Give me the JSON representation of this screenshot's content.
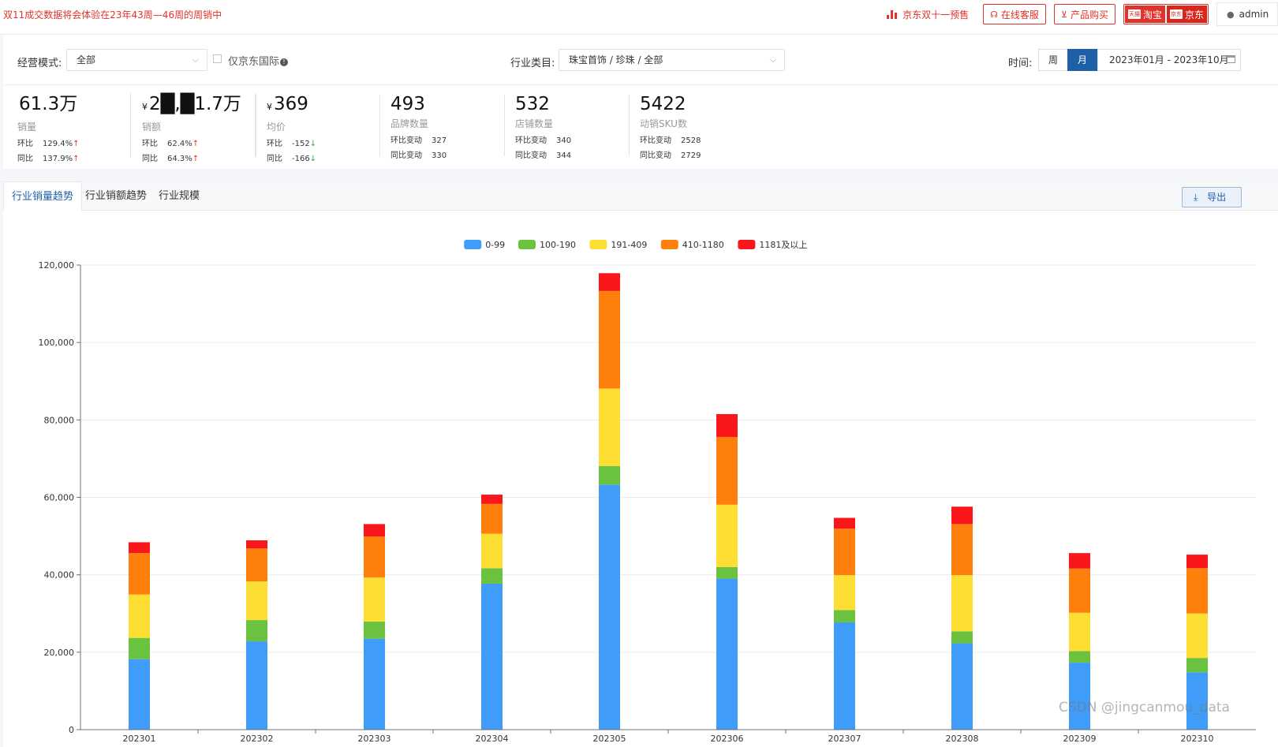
{
  "topbar": {
    "notice": "双11成交数据将会体验在23年43周—46周的周销中",
    "jd_presale": "京东双十一预售",
    "online_service": "在线客服",
    "product_purchase": "产品购买",
    "platform_taobao": "淘宝",
    "platform_taobao_badge": "天猫",
    "platform_jd": "京东",
    "platform_jd_badge": "京东",
    "user": "admin"
  },
  "filters": {
    "mode_label": "经营模式:",
    "mode_value": "全部",
    "jd_intl_label": "仅京东国际",
    "category_label": "行业类目:",
    "category_value": "珠宝首饰 / 珍珠 / 全部",
    "time_label": "时间:",
    "week": "周",
    "month": "月",
    "date_range": "2023年01月 - 2023年10月"
  },
  "metrics": [
    {
      "value": "61.3万",
      "currency": "",
      "title": "销量",
      "row1_label": "环比",
      "row1_value": "129.4%",
      "row1_arrow": "↑",
      "row2_label": "同比",
      "row2_value": "137.9%",
      "row2_arrow": "↑"
    },
    {
      "value": "2█,█1.7万",
      "currency": "¥",
      "title": "销额",
      "row1_label": "环比",
      "row1_value": "62.4%",
      "row1_arrow": "↑",
      "row2_label": "同比",
      "row2_value": "64.3%",
      "row2_arrow": "↑"
    },
    {
      "value": "369",
      "currency": "¥",
      "title": "均价",
      "row1_label": "环比",
      "row1_value": "-152",
      "row1_arrow": "↓",
      "row2_label": "同比",
      "row2_value": "-166",
      "row2_arrow": "↓"
    },
    {
      "value": "493",
      "currency": "",
      "title": "品牌数量",
      "row1_label": "环比变动",
      "row1_value": "327",
      "row1_arrow": "",
      "row2_label": "同比变动",
      "row2_value": "330",
      "row2_arrow": ""
    },
    {
      "value": "532",
      "currency": "",
      "title": "店铺数量",
      "row1_label": "环比变动",
      "row1_value": "340",
      "row1_arrow": "",
      "row2_label": "同比变动",
      "row2_value": "344",
      "row2_arrow": ""
    },
    {
      "value": "5422",
      "currency": "",
      "title": "动销SKU数",
      "row1_label": "环比变动",
      "row1_value": "2528",
      "row1_arrow": "",
      "row2_label": "同比变动",
      "row2_value": "2729",
      "row2_arrow": ""
    }
  ],
  "tabs": [
    "行业销量趋势",
    "行业销额趋势",
    "行业规模"
  ],
  "export_label": "导出",
  "watermark": "CSDN @jingcanmou_data",
  "chart_data": {
    "type": "bar",
    "stacked": true,
    "categories": [
      "202301",
      "202302",
      "202303",
      "202304",
      "202305",
      "202306",
      "202307",
      "202308",
      "202309",
      "202310"
    ],
    "series": [
      {
        "name": "0-99",
        "color": "#3f9df9",
        "values": [
          18200,
          22800,
          23500,
          37700,
          63300,
          39000,
          27700,
          22300,
          17300,
          14800
        ]
      },
      {
        "name": "100-190",
        "color": "#6bc23e",
        "values": [
          5500,
          5500,
          4400,
          4000,
          4800,
          3000,
          3200,
          3100,
          3000,
          3700
        ]
      },
      {
        "name": "191-409",
        "color": "#fddf33",
        "values": [
          11200,
          10000,
          11400,
          8900,
          20000,
          16100,
          9000,
          14500,
          9900,
          11500
        ]
      },
      {
        "name": "410-1180",
        "color": "#fe7f0c",
        "values": [
          10700,
          8500,
          10600,
          7700,
          25200,
          17500,
          12000,
          13200,
          11400,
          11700
        ]
      },
      {
        "name": "1181及以上",
        "color": "#f9171b",
        "values": [
          2800,
          2100,
          3200,
          2400,
          4600,
          5900,
          2800,
          4500,
          4000,
          3500
        ]
      }
    ],
    "y_ticks": [
      "0",
      "20,000",
      "40,000",
      "60,000",
      "80,000",
      "100,000",
      "120,000"
    ],
    "ylim": [
      0,
      120000
    ],
    "legend_position": "top-center",
    "grid": true
  }
}
